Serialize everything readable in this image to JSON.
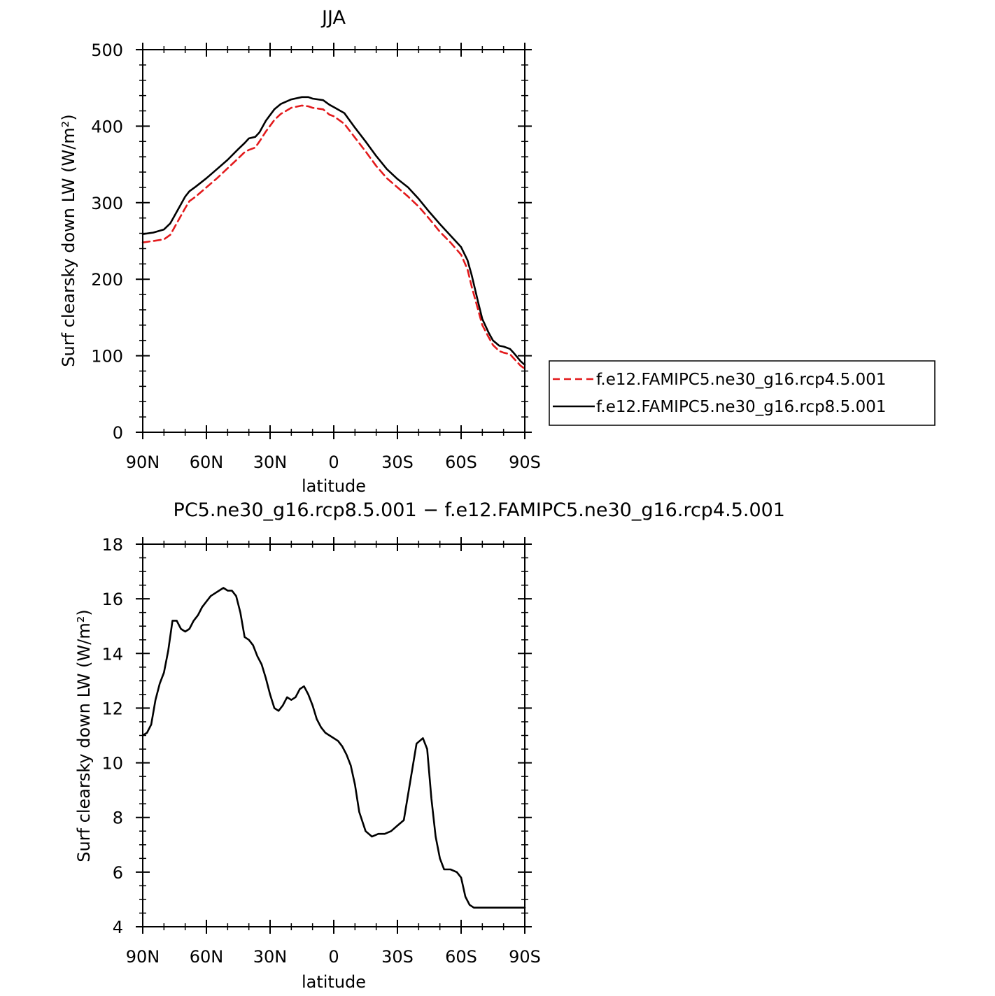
{
  "chart_data": [
    {
      "type": "line",
      "title": "JJA",
      "xlabel": "latitude",
      "ylabel": "Surf clearsky down LW (W/m²)",
      "xlim": [
        90,
        -90
      ],
      "ylim": [
        0,
        500
      ],
      "yticks": [
        0,
        100,
        200,
        300,
        400,
        500
      ],
      "xticks": [
        90,
        60,
        30,
        0,
        -30,
        -60,
        -90
      ],
      "xtick_labels": [
        "90N",
        "60N",
        "30N",
        "0",
        "30S",
        "60S",
        "90S"
      ],
      "grid": false,
      "legend_position": "right",
      "series": [
        {
          "name": "f.e12.FAMIPC5.ne30_g16.rcp4.5.001",
          "color": "#e31a1c",
          "dash": "dashed",
          "x": [
            90,
            85,
            80,
            77,
            75,
            72,
            70,
            68,
            65,
            60,
            55,
            50,
            45,
            42,
            40,
            37,
            35,
            32,
            28,
            25,
            20,
            15,
            12,
            10,
            5,
            2,
            0,
            -5,
            -10,
            -15,
            -20,
            -25,
            -30,
            -35,
            -40,
            -45,
            -50,
            -55,
            -60,
            -63,
            -65,
            -68,
            -70,
            -73,
            -75,
            -78,
            -80,
            -83,
            -85,
            -88,
            -90
          ],
          "y": [
            248,
            250,
            252,
            258,
            268,
            283,
            293,
            302,
            308,
            320,
            332,
            345,
            358,
            366,
            369,
            372,
            380,
            393,
            408,
            416,
            424,
            427,
            426,
            424,
            422,
            415,
            413,
            403,
            385,
            367,
            348,
            332,
            320,
            308,
            295,
            279,
            262,
            248,
            232,
            213,
            190,
            160,
            140,
            124,
            114,
            106,
            104,
            102,
            96,
            87,
            83
          ]
        },
        {
          "name": "f.e12.FAMIPC5.ne30_g16.rcp8.5.001",
          "color": "#000000",
          "dash": "solid",
          "x": [
            90,
            85,
            80,
            77,
            75,
            72,
            70,
            68,
            65,
            60,
            55,
            50,
            45,
            42,
            40,
            37,
            35,
            32,
            28,
            25,
            20,
            15,
            12,
            10,
            5,
            2,
            0,
            -5,
            -10,
            -15,
            -20,
            -25,
            -30,
            -35,
            -40,
            -45,
            -50,
            -55,
            -60,
            -63,
            -65,
            -68,
            -70,
            -73,
            -75,
            -78,
            -80,
            -83,
            -85,
            -88,
            -90
          ],
          "y": [
            259,
            261,
            265,
            273,
            283,
            298,
            308,
            315,
            321,
            332,
            344,
            356,
            370,
            378,
            384,
            386,
            392,
            407,
            422,
            429,
            435,
            438,
            438,
            436,
            434,
            428,
            425,
            417,
            398,
            380,
            361,
            344,
            331,
            320,
            305,
            288,
            272,
            257,
            242,
            225,
            205,
            170,
            148,
            130,
            120,
            113,
            112,
            109,
            103,
            93,
            88
          ]
        }
      ]
    },
    {
      "type": "line",
      "title": "PC5.ne30_g16.rcp8.5.001 − f.e12.FAMIPC5.ne30_g16.rcp4.5.001",
      "xlabel": "latitude",
      "ylabel": "Surf clearsky down LW (W/m²)",
      "xlim": [
        90,
        -90
      ],
      "ylim": [
        4,
        18
      ],
      "yticks": [
        4,
        6,
        8,
        10,
        12,
        14,
        16,
        18
      ],
      "xticks": [
        90,
        60,
        30,
        0,
        -30,
        -60,
        -90
      ],
      "xtick_labels": [
        "90N",
        "60N",
        "30N",
        "0",
        "30S",
        "60S",
        "90S"
      ],
      "grid": false,
      "series": [
        {
          "color": "#000000",
          "dash": "solid",
          "x": [
            90,
            88,
            86,
            84,
            82,
            80,
            78,
            76,
            74,
            72,
            70,
            68,
            66,
            64,
            62,
            60,
            58,
            56,
            54,
            52,
            50,
            48,
            46,
            44,
            42,
            40,
            38,
            36,
            34,
            32,
            30,
            28,
            26,
            24,
            22,
            20,
            18,
            16,
            14,
            12,
            10,
            8,
            6,
            4,
            2,
            0,
            -2,
            -4,
            -6,
            -8,
            -10,
            -12,
            -15,
            -18,
            -21,
            -24,
            -27,
            -30,
            -33,
            -36,
            -39,
            -42,
            -44,
            -46,
            -48,
            -50,
            -52,
            -55,
            -58,
            -60,
            -62,
            -64,
            -66,
            -67,
            -68,
            -70,
            -72,
            -74,
            -76,
            -78,
            -80,
            -82,
            -84,
            -86,
            -88,
            -90
          ],
          "y": [
            11.0,
            11.1,
            11.4,
            12.3,
            12.9,
            13.3,
            14.1,
            15.2,
            15.2,
            14.9,
            14.8,
            14.9,
            15.2,
            15.4,
            15.7,
            15.9,
            16.1,
            16.2,
            16.3,
            16.4,
            16.3,
            16.3,
            16.1,
            15.5,
            14.6,
            14.5,
            14.3,
            13.9,
            13.6,
            13.1,
            12.5,
            12.0,
            11.9,
            12.1,
            12.4,
            12.3,
            12.4,
            12.7,
            12.8,
            12.5,
            12.1,
            11.6,
            11.3,
            11.1,
            11.0,
            10.9,
            10.8,
            10.6,
            10.3,
            9.9,
            9.2,
            8.2,
            7.5,
            7.3,
            7.4,
            7.4,
            7.5,
            7.7,
            7.9,
            9.3,
            10.7,
            10.9,
            10.5,
            8.7,
            7.3,
            6.5,
            6.1,
            6.1,
            6.0,
            5.8,
            5.1,
            4.8,
            4.7,
            4.7,
            4.7,
            4.7,
            4.7,
            4.7,
            4.7,
            4.7,
            4.7,
            4.7,
            4.7,
            4.7,
            4.7,
            4.7
          ]
        }
      ]
    }
  ]
}
